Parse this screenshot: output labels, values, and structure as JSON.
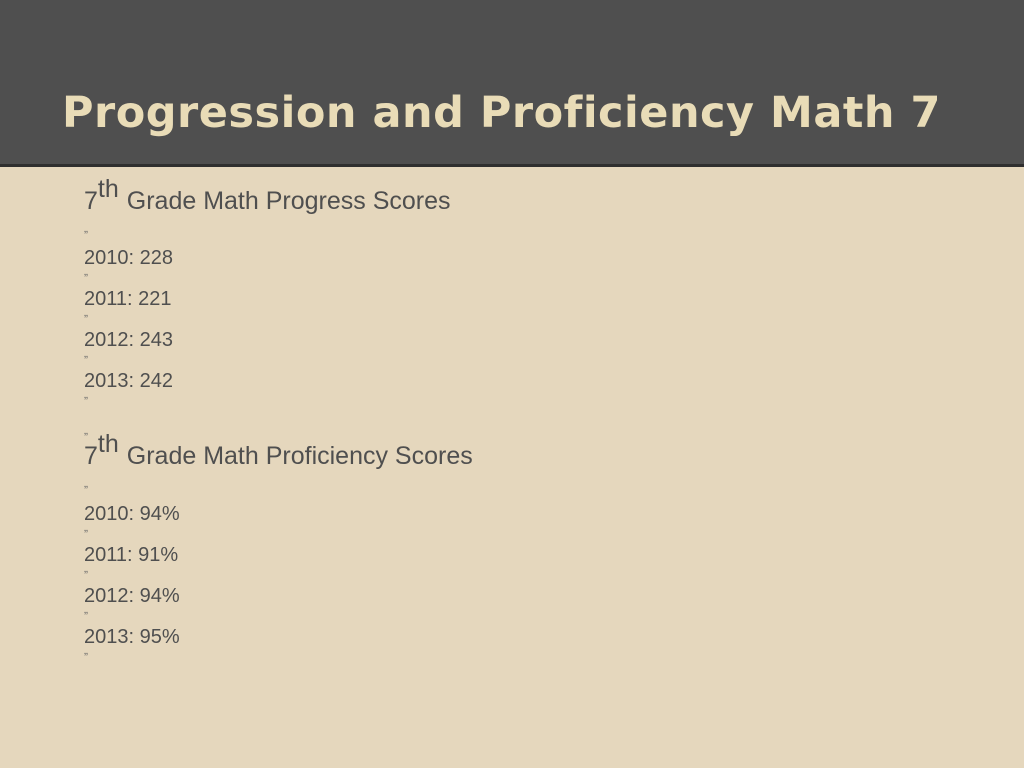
{
  "slide": {
    "title": "Progression and Proficiency Math 7",
    "bullet_glyph": "„",
    "progress": {
      "ordinal_number": "7",
      "ordinal_suffix": "th",
      "heading_rest": "Grade Math Progress Scores",
      "items": [
        "2010: 228",
        "2011: 221",
        "2012: 243",
        "2013: 242"
      ]
    },
    "proficiency": {
      "ordinal_number": "7",
      "ordinal_suffix": "th",
      "heading_rest": "Grade Math Proficiency Scores",
      "items": [
        "2010: 94%",
        "2011: 91%",
        "2012: 94%",
        "2013: 95%"
      ]
    }
  },
  "colors": {
    "title_bar": "#4f4f4f",
    "title_text": "#e9dcb7",
    "background": "#e5d7bd",
    "body_text": "#4f4f4f"
  }
}
